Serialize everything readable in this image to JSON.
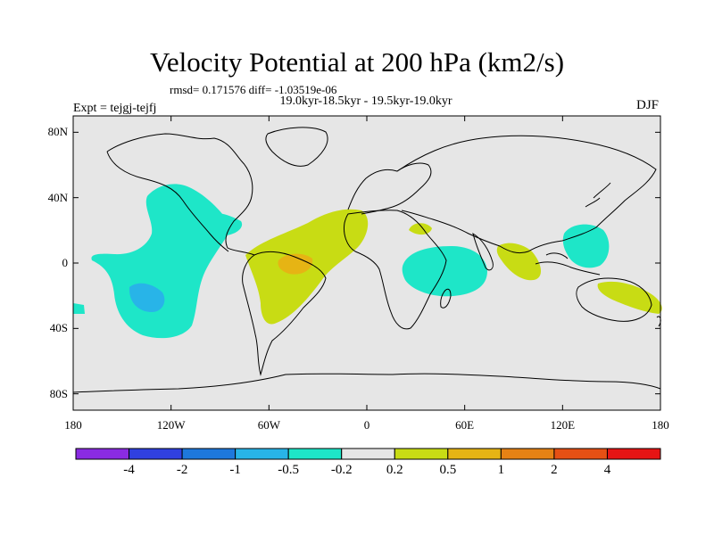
{
  "title": "Velocity Potential at 200 hPa (km2/s)",
  "stats_line": "rmsd= 0.171576 diff= -1.03519e-06",
  "subtitle": "19.0kyr-18.5kyr - 19.5kyr-19.0kyr",
  "experiment": "Expt = tejgj-tejfj",
  "season": "DJF",
  "map": {
    "projection": "cylindrical equidistant",
    "lon_range": [
      -180,
      180
    ],
    "lat_range": [
      -90,
      90
    ],
    "lat_ticks": [
      {
        "value": 80,
        "label": "80N"
      },
      {
        "value": 40,
        "label": "40N"
      },
      {
        "value": 0,
        "label": "0"
      },
      {
        "value": -40,
        "label": "40S"
      },
      {
        "value": -80,
        "label": "80S"
      }
    ],
    "lon_ticks": [
      {
        "value": -180,
        "label": "180"
      },
      {
        "value": -120,
        "label": "120W"
      },
      {
        "value": -60,
        "label": "60W"
      },
      {
        "value": 0,
        "label": "0"
      },
      {
        "value": 60,
        "label": "60E"
      },
      {
        "value": 120,
        "label": "120E"
      },
      {
        "value": 180,
        "label": "180"
      }
    ],
    "background_color": "#e6e6e6",
    "coastline_color": "#000000"
  },
  "colorbar": {
    "colors": [
      "#8a2be2",
      "#3040e0",
      "#1e78dc",
      "#28b4e8",
      "#1ee6c8",
      "#e6e6e6",
      "#c8dc14",
      "#e6b414",
      "#e68214",
      "#e65014",
      "#e61414"
    ],
    "labels": [
      "-4",
      "-2",
      "-1",
      "-0.5",
      "-0.2",
      "0.2",
      "0.5",
      "1",
      "2",
      "4"
    ]
  }
}
